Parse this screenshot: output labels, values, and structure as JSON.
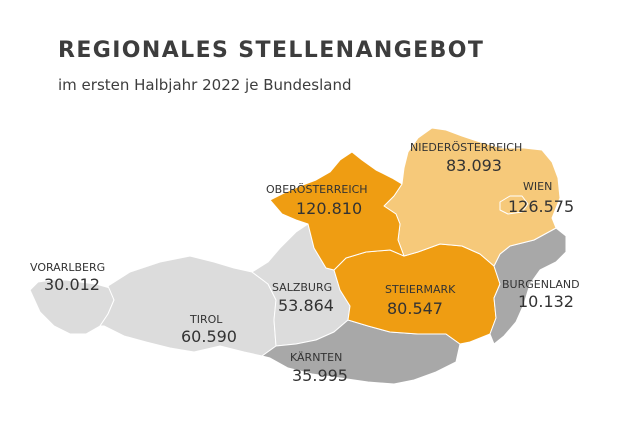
{
  "title": "REGIONALES STELLENANGEBOT",
  "subtitle": "im ersten Halbjahr 2022 je Bundesland",
  "colors": {
    "highest": "#ef9d12",
    "high": "#f6c97a",
    "medium": "#a8a8a8",
    "low": "#dcdcdc"
  },
  "states": [
    {
      "name": "VORARLBERG",
      "value": "30.012",
      "color": "#dcdcdc"
    },
    {
      "name": "TIROL",
      "value": "60.590",
      "color": "#dcdcdc"
    },
    {
      "name": "SALZBURG",
      "value": "53.864",
      "color": "#dcdcdc"
    },
    {
      "name": "KÄRNTEN",
      "value": "35.995",
      "color": "#a8a8a8"
    },
    {
      "name": "OBERÖSTERREICH",
      "value": "120.810",
      "color": "#ef9d12"
    },
    {
      "name": "NIEDERÖSTERREICH",
      "value": "83.093",
      "color": "#f6c97a"
    },
    {
      "name": "WIEN",
      "value": "126.575",
      "color": "#ef9d12"
    },
    {
      "name": "STEIERMARK",
      "value": "80.547",
      "color": "#f6c97a"
    },
    {
      "name": "BURGENLAND",
      "value": "10.132",
      "color": "#a8a8a8"
    }
  ]
}
